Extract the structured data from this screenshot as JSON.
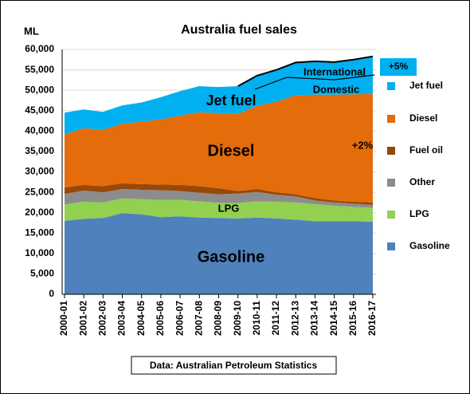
{
  "chart_data": {
    "type": "stacked-area",
    "title": "Australia  fuel sales",
    "y_label": "ML",
    "source": "Data: Australian Petroleum Statistics",
    "annotations": [
      "Jet fuel",
      "Diesel",
      "LPG",
      "Gasoline",
      "International",
      "Domestic",
      "+5%",
      "+2%"
    ],
    "categories": [
      "2000-01",
      "2001-02",
      "2002-03",
      "2003-04",
      "2004-05",
      "2005-06",
      "2006-07",
      "2007-08",
      "2008-09",
      "2009-10",
      "2010-11",
      "2011-12",
      "2012-13",
      "2013-14",
      "2014-15",
      "2015-16",
      "2016-17"
    ],
    "series": [
      {
        "name": "Gasoline",
        "color": "#4f81bd",
        "values": [
          18000,
          18500,
          18700,
          19900,
          19600,
          18900,
          19100,
          18800,
          18700,
          18600,
          18800,
          18600,
          18300,
          17900,
          17900,
          17900,
          17800
        ]
      },
      {
        "name": "LPG",
        "color": "#92d050",
        "values": [
          4000,
          4200,
          3800,
          3600,
          3700,
          4200,
          4000,
          4000,
          3700,
          3800,
          4000,
          4100,
          4200,
          4200,
          3800,
          3500,
          3400
        ]
      },
      {
        "name": "Other",
        "color": "#8c8c8c",
        "values": [
          2600,
          2700,
          2500,
          2300,
          2300,
          2400,
          2200,
          2100,
          2100,
          2300,
          2300,
          1700,
          1500,
          900,
          800,
          800,
          700
        ]
      },
      {
        "name": "Fuel oil",
        "color": "#984807",
        "values": [
          1600,
          1400,
          1500,
          1400,
          1400,
          1400,
          1500,
          1600,
          1500,
          600,
          700,
          600,
          500,
          600,
          500,
          500,
          600
        ]
      },
      {
        "name": "Diesel",
        "color": "#e46c0a",
        "values": [
          13000,
          13900,
          13800,
          14600,
          15300,
          16000,
          17000,
          18100,
          18400,
          18900,
          20400,
          22200,
          24300,
          25300,
          25900,
          26300,
          26600
        ]
      },
      {
        "name": "Jet fuel",
        "color": "#00b0f0",
        "values": [
          5300,
          4600,
          4400,
          4500,
          4700,
          5400,
          6000,
          6400,
          6400,
          6800,
          7400,
          7800,
          8000,
          8200,
          8000,
          8500,
          9200
        ]
      }
    ],
    "ylim": [
      0,
      60000
    ],
    "yticks": [
      0,
      {
        "value": 5000,
        "label": "5,000"
      },
      {
        "value": 10000,
        "label": "10,000"
      },
      {
        "value": 15000,
        "label": "15,000"
      },
      {
        "value": 20000,
        "label": "20,000"
      },
      {
        "value": 25000,
        "label": "25,000"
      },
      {
        "value": 30000,
        "label": "30,000"
      },
      {
        "value": 35000,
        "label": "35,000"
      },
      {
        "value": 40000,
        "label": "40,000"
      },
      {
        "value": 45000,
        "label": "45,000"
      },
      {
        "value": 50000,
        "label": "50,000"
      },
      {
        "value": 55000,
        "label": "55,000"
      },
      {
        "value": 60000,
        "label": "60,000"
      }
    ],
    "grid": true,
    "legend": "right"
  }
}
